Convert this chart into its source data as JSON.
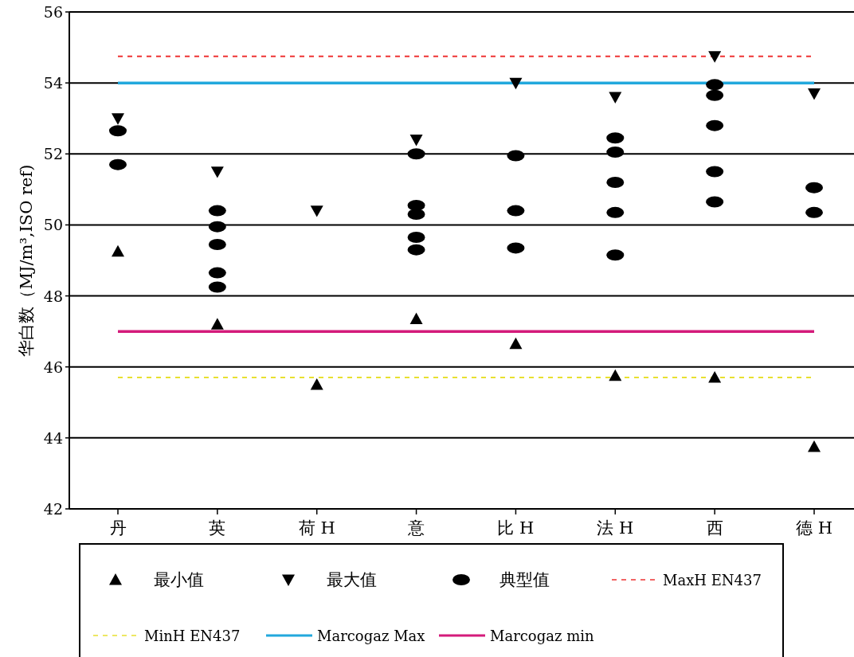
{
  "chart_data": {
    "type": "scatter",
    "ylabel": "华白数（MJ/m³,ISO ref)",
    "categories": [
      "丹",
      "英",
      "荷 H",
      "意",
      "比 H",
      "法 H",
      "西",
      "德 H"
    ],
    "ylim": [
      42,
      56
    ],
    "yticks": [
      42,
      44,
      46,
      48,
      50,
      52,
      54,
      56
    ],
    "grid": "y",
    "legend": "bottom",
    "series": [
      {
        "name": "最小值",
        "color": "#000000",
        "marker": "triangle",
        "values": [
          49.25,
          47.2,
          45.5,
          47.35,
          46.65,
          45.75,
          45.7,
          43.75
        ]
      },
      {
        "name": "最大值",
        "color": "#000000",
        "marker": "triangle-down",
        "values": [
          53.0,
          51.5,
          50.4,
          52.4,
          54.0,
          53.6,
          54.75,
          53.7
        ]
      },
      {
        "name": "典型值",
        "color": "#000000",
        "marker": "circle",
        "x": [
          "丹",
          "丹",
          "英",
          "英",
          "英",
          "英",
          "英",
          "意",
          "意",
          "意",
          "意",
          "意",
          "比 H",
          "比 H",
          "比 H",
          "法 H",
          "法 H",
          "法 H",
          "法 H",
          "法 H",
          "西",
          "西",
          "西",
          "西",
          "西",
          "德 H",
          "德 H"
        ],
        "values": [
          52.65,
          51.7,
          50.4,
          49.95,
          49.45,
          48.65,
          48.25,
          52.0,
          50.55,
          50.3,
          49.65,
          49.3,
          51.95,
          50.4,
          49.35,
          52.45,
          52.05,
          51.2,
          50.35,
          49.15,
          53.95,
          53.65,
          52.8,
          51.5,
          50.65,
          51.05,
          50.35
        ]
      }
    ],
    "ref_lines": [
      {
        "axis": "y",
        "value": 54.75,
        "label": "MaxH EN437",
        "color": "#ee3333",
        "line_style": "dashed"
      },
      {
        "axis": "y",
        "value": 45.7,
        "label": "MinH EN437",
        "color": "#e8e030",
        "line_style": "dashed"
      },
      {
        "axis": "y",
        "value": 54,
        "label": "Marcogaz Max",
        "color": "#22a8dd",
        "line_style": "solid"
      },
      {
        "axis": "y",
        "value": 47,
        "label": "Marcogaz min",
        "color": "#d41b7b",
        "line_style": "solid"
      }
    ]
  }
}
